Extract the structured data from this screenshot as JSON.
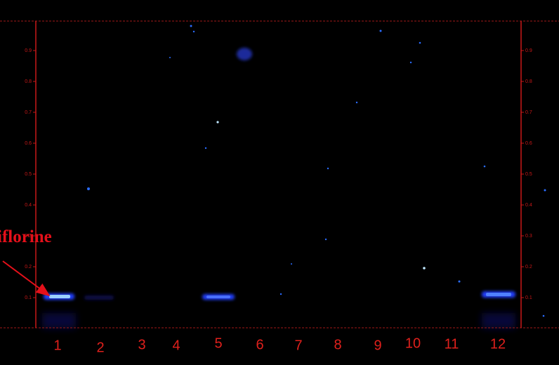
{
  "annotation": "iflorine",
  "rf_scale": {
    "lim": [
      0,
      1
    ],
    "ticks": [
      0.1,
      0.2,
      0.3,
      0.4,
      0.5,
      0.6,
      0.7,
      0.8,
      0.9
    ]
  },
  "lanes": [
    "1",
    "2",
    "3",
    "4",
    "5",
    "6",
    "7",
    "8",
    "9",
    "10",
    "11",
    "12"
  ]
}
